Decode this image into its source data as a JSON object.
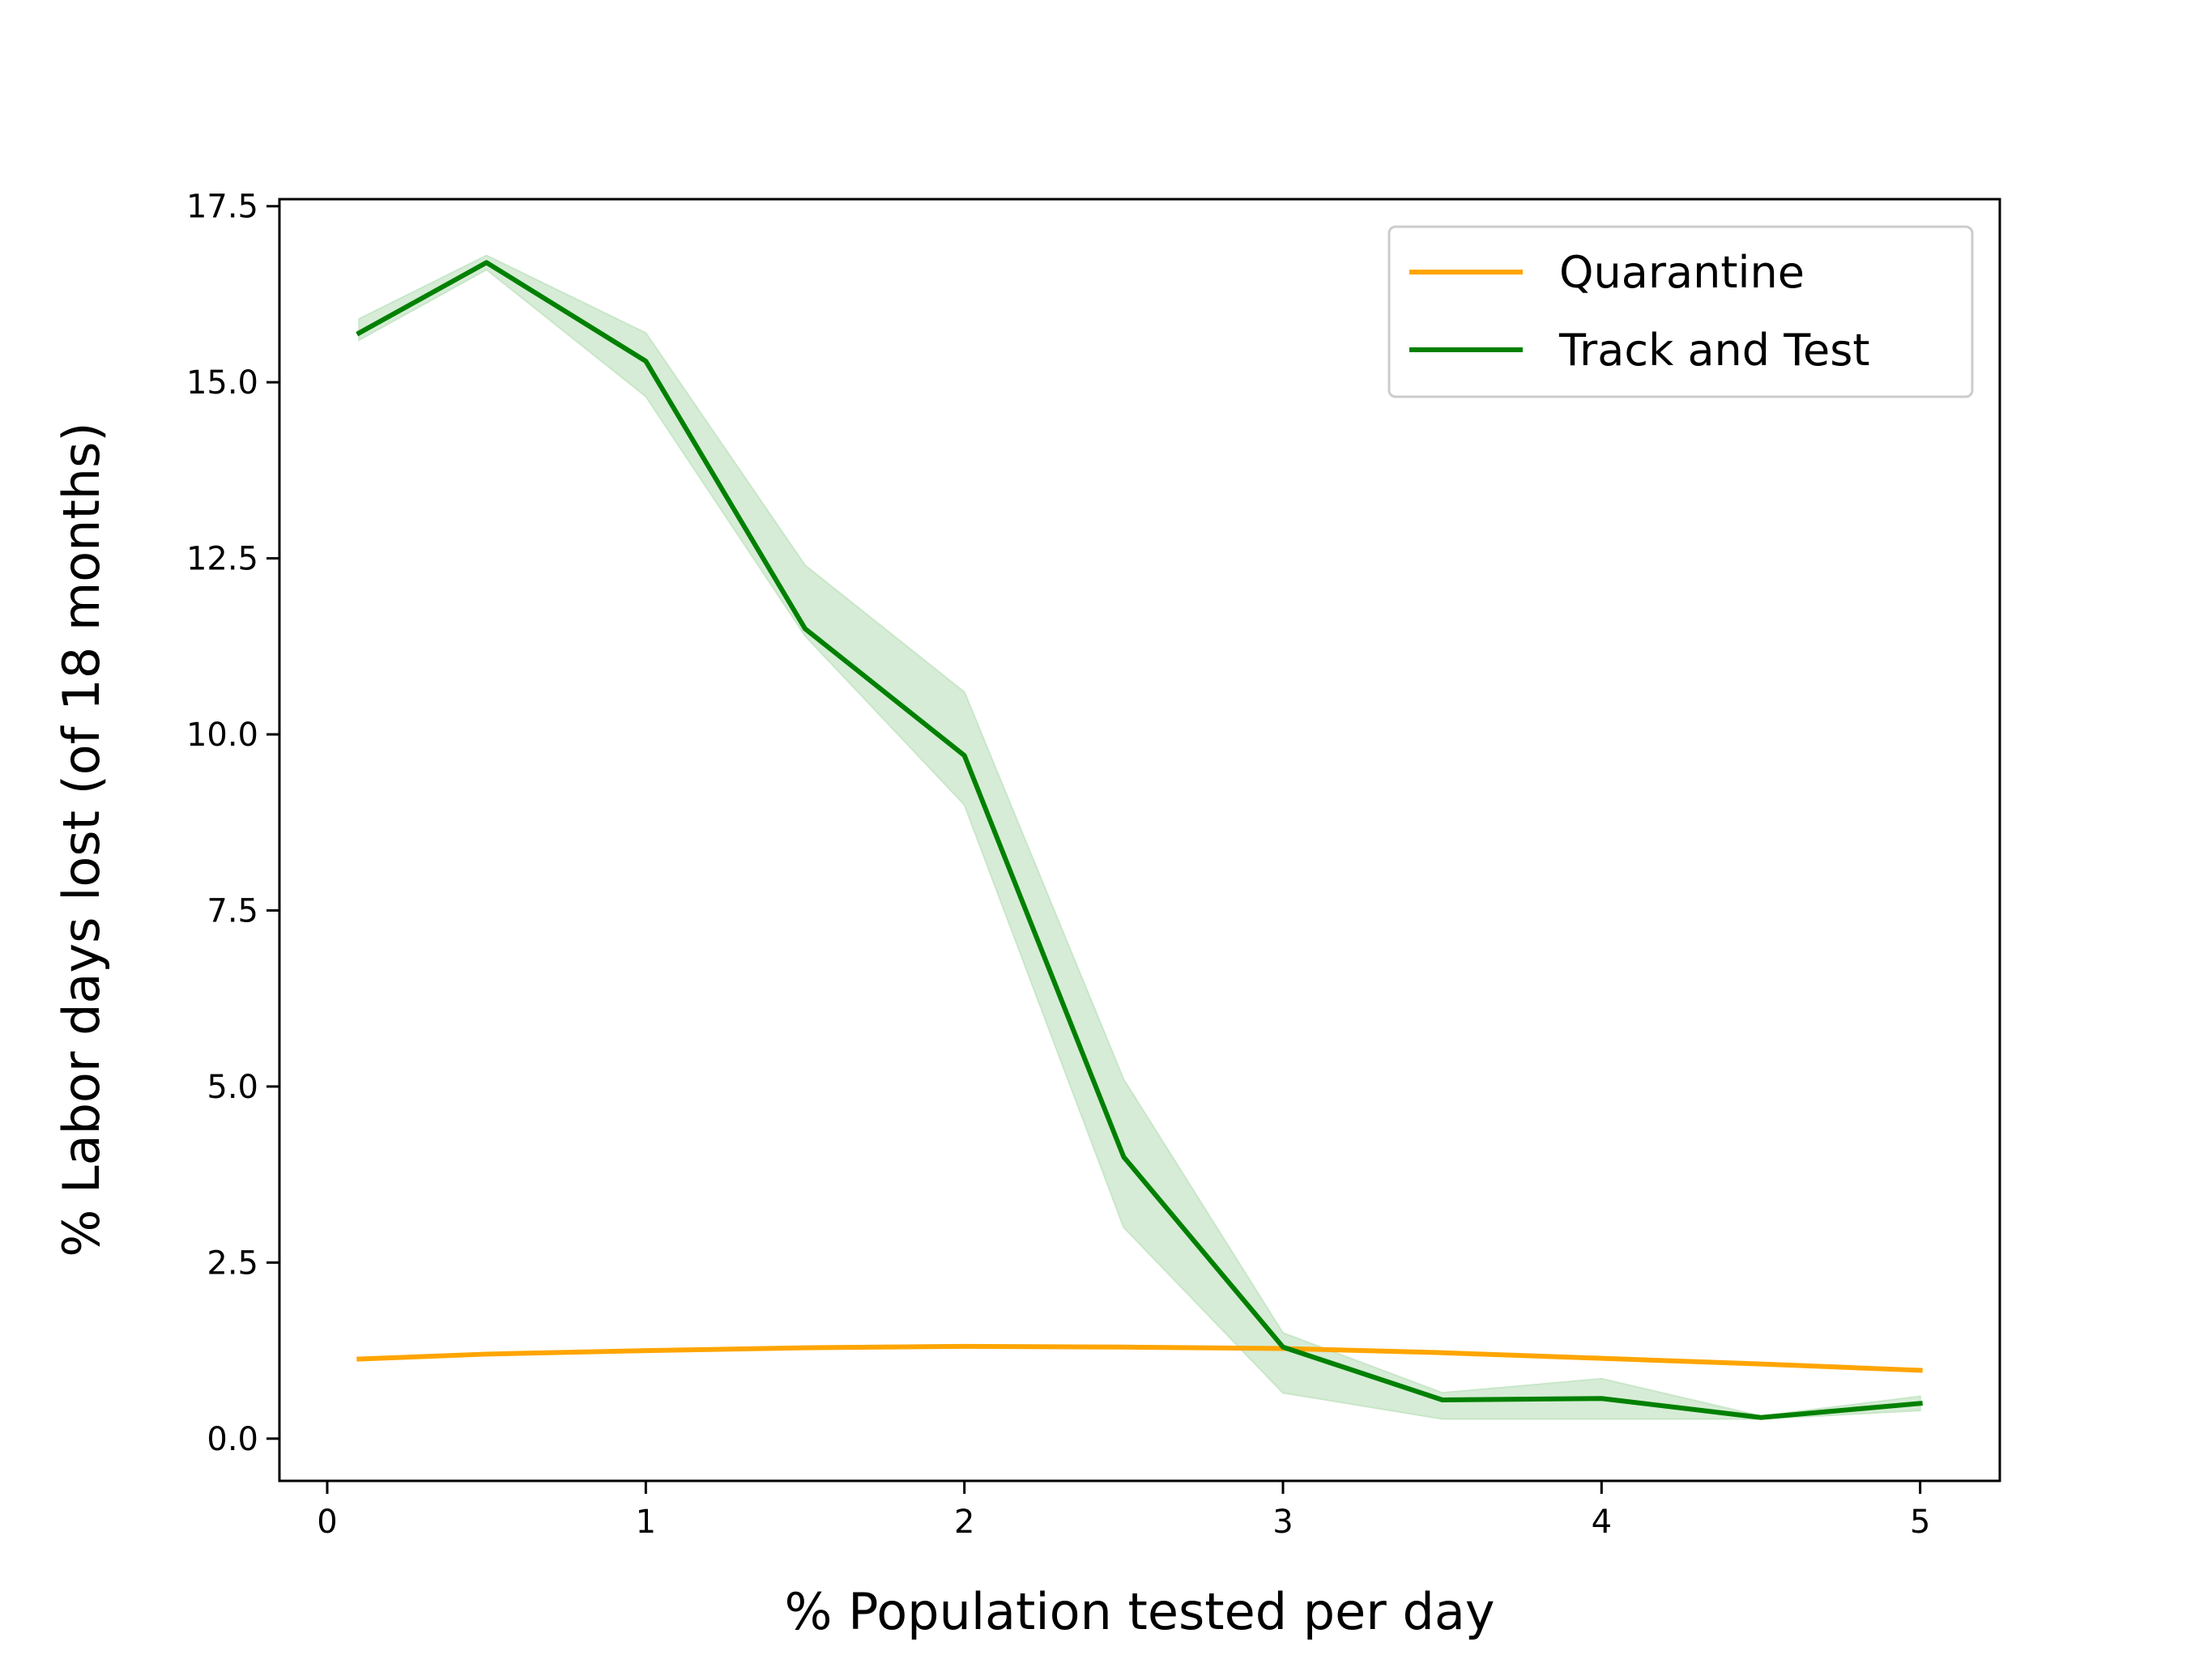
{
  "chart_data": {
    "type": "line",
    "title": "",
    "xlabel": "% Population tested per day",
    "ylabel": "% Labor days lost (of 18 months)",
    "xlim": [
      -0.15,
      5.25
    ],
    "ylim": [
      -0.6,
      17.6
    ],
    "xticks": [
      0,
      1,
      2,
      3,
      4,
      5
    ],
    "xtick_labels": [
      "0",
      "1",
      "2",
      "3",
      "4",
      "5"
    ],
    "yticks": [
      0.0,
      2.5,
      5.0,
      7.5,
      10.0,
      12.5,
      15.0,
      17.5
    ],
    "ytick_labels": [
      "0.0",
      "2.5",
      "5.0",
      "7.5",
      "10.0",
      "12.5",
      "15.0",
      "17.5"
    ],
    "grid": false,
    "legend_position": "top-right",
    "x": [
      0.1,
      0.5,
      1.0,
      1.5,
      2.0,
      2.5,
      3.0,
      3.5,
      4.0,
      4.5,
      5.0
    ],
    "series": [
      {
        "name": "Quarantine",
        "color": "#ffa500",
        "values": [
          1.13,
          1.2,
          1.25,
          1.29,
          1.31,
          1.3,
          1.28,
          1.22,
          1.14,
          1.06,
          0.97
        ]
      },
      {
        "name": "Track and Test",
        "color": "#008000",
        "band_color": "#c8e6c8",
        "values": [
          15.7,
          16.7,
          15.3,
          11.5,
          9.7,
          4.0,
          1.3,
          0.55,
          0.57,
          0.3,
          0.5
        ],
        "lower": [
          15.6,
          16.6,
          14.8,
          11.4,
          9.0,
          3.0,
          0.65,
          0.28,
          0.28,
          0.28,
          0.4
        ],
        "upper": [
          15.9,
          16.8,
          15.7,
          12.4,
          10.6,
          5.1,
          1.5,
          0.65,
          0.85,
          0.32,
          0.6
        ]
      }
    ]
  }
}
